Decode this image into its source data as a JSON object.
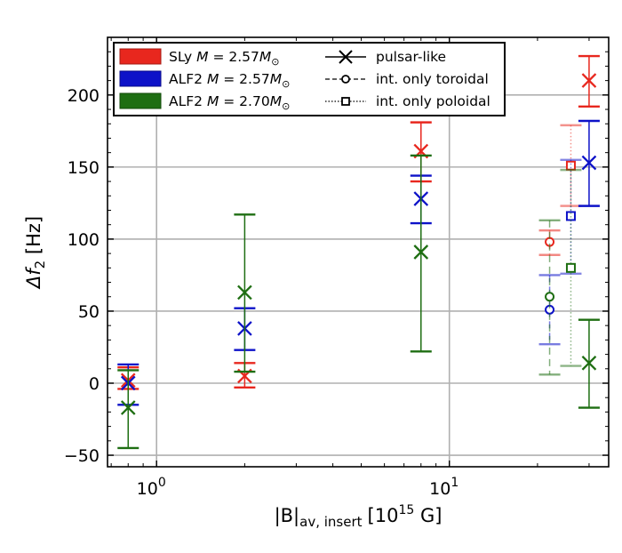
{
  "chart_data": {
    "type": "scatter",
    "xscale": "log",
    "xlim": [
      0.68,
      35
    ],
    "ylim": [
      -58,
      240
    ],
    "xlabel_parts": {
      "main": "|B|",
      "sub": "av, insert",
      "rest": "[10",
      "sup": "15",
      "unit": " G]"
    },
    "ylabel_parts": {
      "main": "Δf",
      "sub": "2",
      "unit": " [Hz]"
    },
    "x_ticks": [
      {
        "value": 1,
        "base": "10",
        "exp": "0"
      },
      {
        "value": 10,
        "base": "10",
        "exp": "1"
      }
    ],
    "y_ticks": [
      {
        "value": -50,
        "label": "−50"
      },
      {
        "value": 0,
        "label": "0"
      },
      {
        "value": 50,
        "label": "50"
      },
      {
        "value": 100,
        "label": "100"
      },
      {
        "value": 150,
        "label": "150"
      },
      {
        "value": 200,
        "label": "200"
      }
    ],
    "grid": true,
    "legend_position": "top-left",
    "series": [
      {
        "name": "SLy M = 2.57M☉",
        "eos": "SLy",
        "mass": "2.57",
        "color": "#e8271e",
        "points": [
          {
            "kind": "pulsar-like",
            "x": 0.8,
            "y": 2,
            "lo": -4,
            "hi": 11
          },
          {
            "kind": "pulsar-like",
            "x": 2.0,
            "y": 5,
            "lo": -3,
            "hi": 14
          },
          {
            "kind": "pulsar-like",
            "x": 8.0,
            "y": 161,
            "lo": 140,
            "hi": 181
          },
          {
            "kind": "pulsar-like",
            "x": 30,
            "y": 210,
            "lo": 192,
            "hi": 227
          },
          {
            "kind": "int. only toroidal",
            "x": 22,
            "y": 98,
            "lo": 89,
            "hi": 106
          },
          {
            "kind": "int. only poloidal",
            "x": 26,
            "y": 151,
            "lo": 123,
            "hi": 179
          }
        ]
      },
      {
        "name": "ALF2 M = 2.57M☉",
        "eos": "ALF2",
        "mass": "2.57",
        "color": "#0d12c8",
        "points": [
          {
            "kind": "pulsar-like",
            "x": 0.8,
            "y": 0,
            "lo": -15,
            "hi": 13
          },
          {
            "kind": "pulsar-like",
            "x": 2.0,
            "y": 38,
            "lo": 23,
            "hi": 52
          },
          {
            "kind": "pulsar-like",
            "x": 8.0,
            "y": 128,
            "lo": 111,
            "hi": 144
          },
          {
            "kind": "pulsar-like",
            "x": 30,
            "y": 153,
            "lo": 123,
            "hi": 182
          },
          {
            "kind": "int. only toroidal",
            "x": 22,
            "y": 51,
            "lo": 27,
            "hi": 75
          },
          {
            "kind": "int. only poloidal",
            "x": 26,
            "y": 116,
            "lo": 76,
            "hi": 155
          }
        ]
      },
      {
        "name": "ALF2 M = 2.70M☉",
        "eos": "ALF2",
        "mass": "2.70",
        "color": "#1e6e12",
        "points": [
          {
            "kind": "pulsar-like",
            "x": 0.8,
            "y": -17,
            "lo": -45,
            "hi": 9
          },
          {
            "kind": "pulsar-like",
            "x": 2.0,
            "y": 63,
            "lo": 8,
            "hi": 117
          },
          {
            "kind": "pulsar-like",
            "x": 8.0,
            "y": 91,
            "lo": 22,
            "hi": 158
          },
          {
            "kind": "pulsar-like",
            "x": 30,
            "y": 14,
            "lo": -17,
            "hi": 44
          },
          {
            "kind": "int. only toroidal",
            "x": 22,
            "y": 60,
            "lo": 6,
            "hi": 113
          },
          {
            "kind": "int. only poloidal",
            "x": 26,
            "y": 80,
            "lo": 12,
            "hi": 148
          }
        ]
      }
    ],
    "legend": {
      "series_labels": [
        {
          "eos": "SLy",
          "m": "M",
          "eq": " = 2.57",
          "sym": "M",
          "sub": "⊙"
        },
        {
          "eos": "ALF2",
          "m": "M",
          "eq": " = 2.57",
          "sym": "M",
          "sub": "⊙"
        },
        {
          "eos": "ALF2",
          "m": "M",
          "eq": " = 2.70",
          "sym": "M",
          "sub": "⊙"
        }
      ],
      "marker_labels": [
        "pulsar-like",
        "int. only toroidal",
        "int. only poloidal"
      ]
    }
  }
}
